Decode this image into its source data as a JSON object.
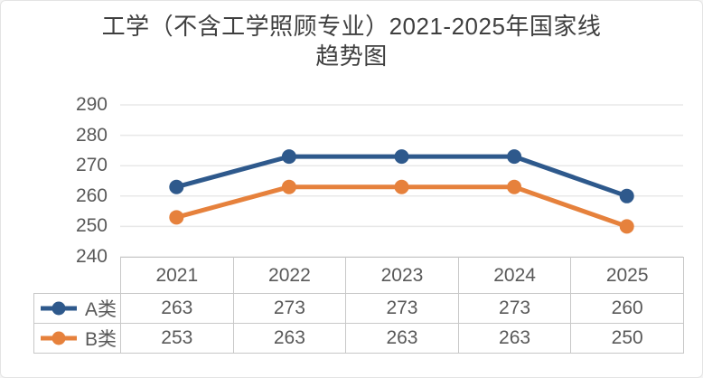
{
  "title": {
    "line1": "工学（不含工学照顾专业）2021-2025年国家线",
    "line2": "趋势图"
  },
  "chart_data": {
    "type": "line",
    "title": "工学（不含工学照顾专业）2021-2025年国家线趋势图",
    "categories": [
      "2021",
      "2022",
      "2023",
      "2024",
      "2025"
    ],
    "series": [
      {
        "name": "A类",
        "values": [
          263,
          273,
          273,
          273,
          260
        ],
        "color": "#2E598C"
      },
      {
        "name": "B类",
        "values": [
          253,
          263,
          263,
          263,
          250
        ],
        "color": "#E6813C"
      }
    ],
    "xlabel": "",
    "ylabel": "",
    "ylim": [
      240,
      290
    ],
    "yticks": [
      240,
      250,
      260,
      270,
      280,
      290
    ],
    "grid": "horizontal-only",
    "legend_position": "data-table-row-headers",
    "data_table_shown": true
  },
  "colors": {
    "title_text": "#3f3f3f",
    "label_text": "#595959",
    "gridline": "#e8e8e8",
    "table_border": "#c8c8c8",
    "series_a": "#2E598C",
    "series_b": "#E6813C",
    "background": "#ffffff"
  }
}
